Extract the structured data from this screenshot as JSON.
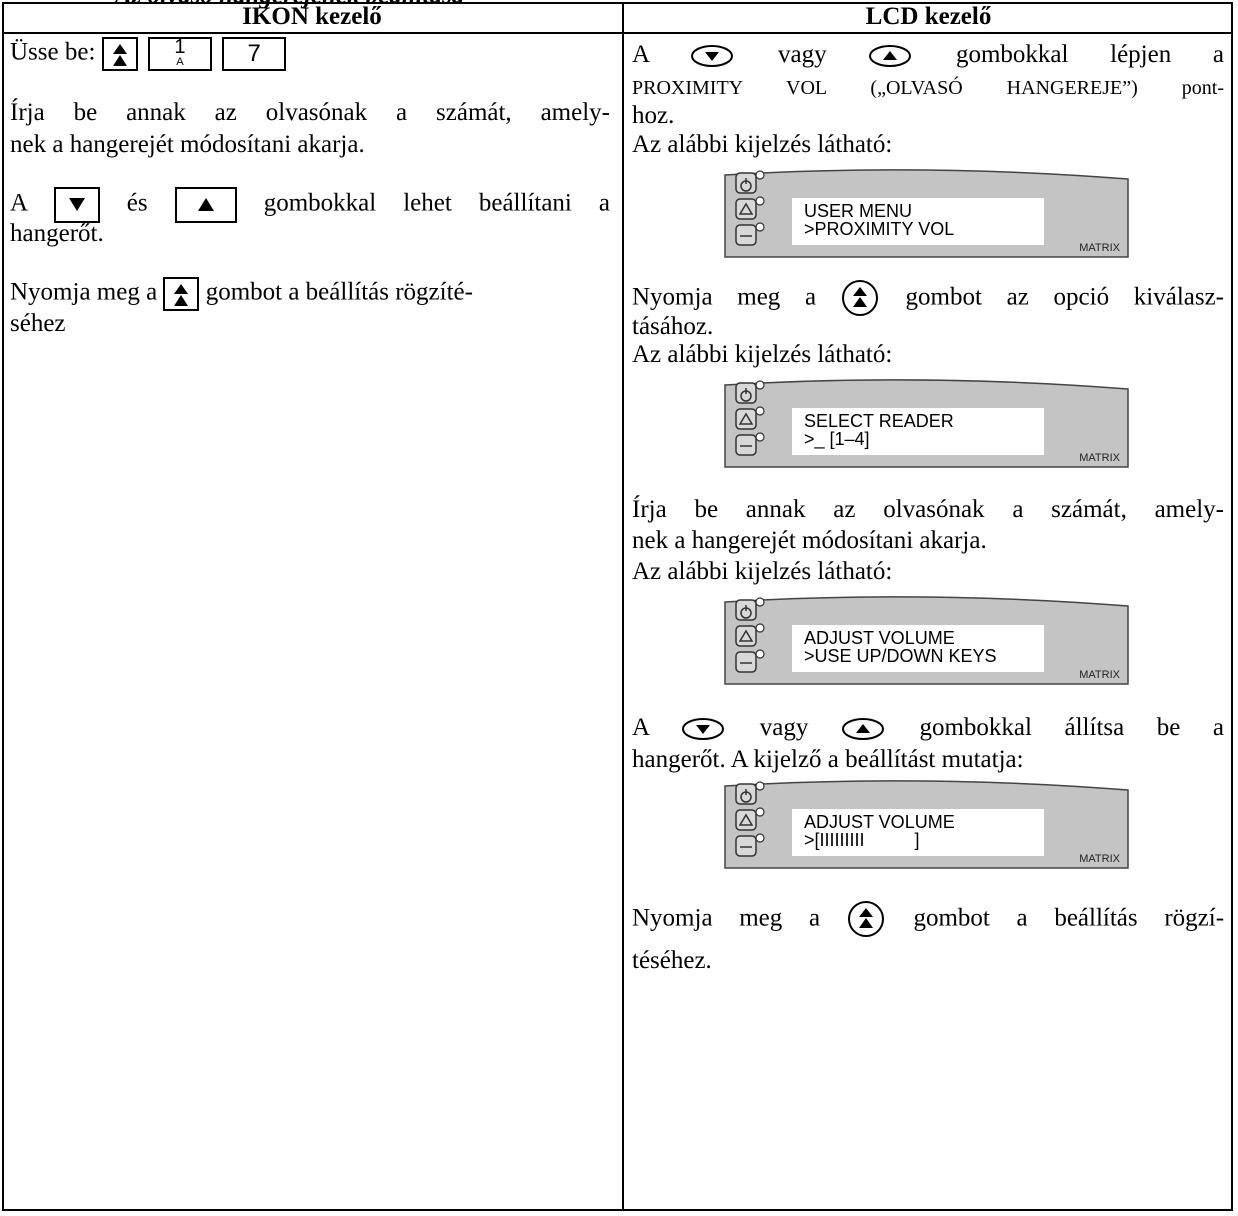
{
  "header": {
    "title": "Az olvasó hangerejének beállítása"
  },
  "table": {
    "headers": [
      "IKON kezelő",
      "LCD kezelő"
    ],
    "left": {
      "enter": "Üsse be:",
      "keys": [
        "1",
        "A",
        "7"
      ],
      "lines": [
        "Írja be annak az olvasónak a számát, amely-",
        "nek a hangerejét módosítani akarja."
      ],
      "adjust": [
        "A",
        "és",
        "gombokkal lehet beállítani a"
      ],
      "adjust2": "hangerőt.",
      "confirm": [
        "Nyomja meg a",
        "gombot a beállítás rögzíté-"
      ],
      "confirm2": "séhez"
    },
    "right": {
      "lines": [
        [
          "A",
          "vagy",
          "gombokkal lépjen a"
        ],
        [
          "PROXIMITY VOL („OLVASÓ HANGEREJE”) pont-"
        ],
        [
          "hoz."
        ],
        [
          "Az alábbi kijelzés látható:"
        ],
        [
          "Nyomja meg a",
          "gombot az opció kiválasz-"
        ],
        [
          "tásához."
        ],
        [
          "Az alábbi kijelzés látható:"
        ],
        [
          "Írja be annak az olvasónak a számát, amely-"
        ],
        [
          "nek a hangerejét módosítani akarja."
        ],
        [
          "Az alábbi kijelzés látható:"
        ],
        [
          "A",
          "vagy",
          "gombokkal állítsa be a"
        ],
        [
          "hangerőt. A kijelző a beállítást mutatja:"
        ],
        [
          "Nyomja meg a",
          "gombot a beállítás rögzí-"
        ],
        [
          "téséhez."
        ]
      ],
      "lcd": [
        {
          "lines": [
            "USER MENU",
            ">PROXIMITY VOL"
          ],
          "brand": "MATRIX"
        },
        {
          "lines": [
            "SELECT READER",
            ">_ [1–4]"
          ],
          "brand": "MATRIX"
        },
        {
          "lines": [
            "ADJUST VOLUME",
            ">USE UP/DOWN KEYS"
          ],
          "brand": "MATRIX"
        },
        {
          "lines": [
            "ADJUST VOLUME",
            ">[IIIIIIIII          ]"
          ],
          "brand": "MATRIX"
        }
      ]
    }
  }
}
